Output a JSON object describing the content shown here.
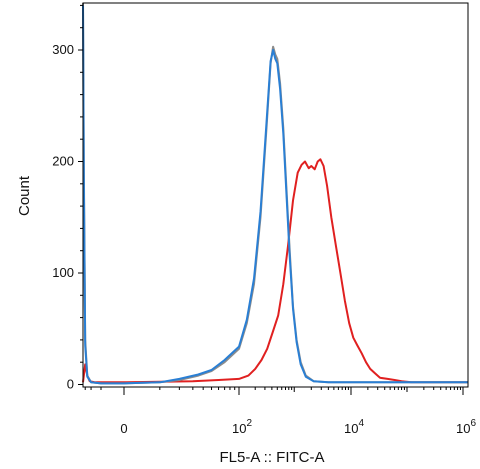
{
  "chart_data": {
    "type": "line",
    "title": "",
    "xlabel": "FL5-A :: FITC-A",
    "ylabel": "Count",
    "x_scale": "biexponential",
    "xlim": [
      -3500,
      1400000
    ],
    "ylim": [
      0,
      345
    ],
    "y_ticks": [
      0,
      100,
      200,
      300
    ],
    "x_ticks": [
      {
        "value": 0,
        "base": "0",
        "exp": ""
      },
      {
        "value": 100,
        "base": "10",
        "exp": "2"
      },
      {
        "value": 10000,
        "base": "10",
        "exp": "4"
      },
      {
        "value": 1000000,
        "base": "10",
        "exp": "6"
      }
    ],
    "grid": false,
    "legend": "none",
    "series": [
      {
        "color": "#e02020",
        "points": [
          [
            -3500,
            2
          ],
          [
            -3000,
            18
          ],
          [
            -2600,
            8
          ],
          [
            -2200,
            3
          ],
          [
            -1500,
            2
          ],
          [
            -500,
            2
          ],
          [
            0,
            2
          ],
          [
            30,
            3
          ],
          [
            60,
            4
          ],
          [
            100,
            5
          ],
          [
            150,
            8
          ],
          [
            200,
            14
          ],
          [
            260,
            22
          ],
          [
            330,
            32
          ],
          [
            420,
            48
          ],
          [
            520,
            62
          ],
          [
            640,
            90
          ],
          [
            780,
            125
          ],
          [
            950,
            165
          ],
          [
            1150,
            190
          ],
          [
            1350,
            197
          ],
          [
            1550,
            200
          ],
          [
            1800,
            194
          ],
          [
            2000,
            196
          ],
          [
            2300,
            193
          ],
          [
            2600,
            200
          ],
          [
            2900,
            202
          ],
          [
            3300,
            196
          ],
          [
            3800,
            178
          ],
          [
            4500,
            150
          ],
          [
            5400,
            125
          ],
          [
            6500,
            100
          ],
          [
            7800,
            75
          ],
          [
            9300,
            55
          ],
          [
            11000,
            42
          ],
          [
            13000,
            35
          ],
          [
            15500,
            28
          ],
          [
            18500,
            20
          ],
          [
            22000,
            14
          ],
          [
            27000,
            10
          ],
          [
            33000,
            6
          ],
          [
            45000,
            5
          ],
          [
            60000,
            4
          ],
          [
            80000,
            3
          ],
          [
            120000,
            2
          ],
          [
            300000,
            2
          ],
          [
            1400000,
            2
          ]
        ]
      },
      {
        "color": "#8c8c8c",
        "points": [
          [
            -3500,
            345
          ],
          [
            -3300,
            200
          ],
          [
            -3000,
            40
          ],
          [
            -2600,
            8
          ],
          [
            -2000,
            2
          ],
          [
            -1000,
            1
          ],
          [
            0,
            1
          ],
          [
            10,
            2
          ],
          [
            20,
            4
          ],
          [
            35,
            8
          ],
          [
            50,
            12
          ],
          [
            70,
            20
          ],
          [
            100,
            32
          ],
          [
            140,
            55
          ],
          [
            190,
            90
          ],
          [
            250,
            150
          ],
          [
            320,
            230
          ],
          [
            380,
            288
          ],
          [
            420,
            303
          ],
          [
            460,
            296
          ],
          [
            500,
            292
          ],
          [
            560,
            270
          ],
          [
            640,
            230
          ],
          [
            730,
            175
          ],
          [
            830,
            120
          ],
          [
            950,
            70
          ],
          [
            1100,
            40
          ],
          [
            1300,
            20
          ],
          [
            1600,
            8
          ],
          [
            2200,
            3
          ],
          [
            4000,
            2
          ],
          [
            10000,
            2
          ],
          [
            1400000,
            2
          ]
        ]
      },
      {
        "color": "#2a7fd4",
        "points": [
          [
            -3500,
            340
          ],
          [
            -3300,
            190
          ],
          [
            -3000,
            35
          ],
          [
            -2600,
            7
          ],
          [
            -2000,
            2
          ],
          [
            -1000,
            1
          ],
          [
            0,
            1
          ],
          [
            10,
            2
          ],
          [
            20,
            5
          ],
          [
            35,
            9
          ],
          [
            50,
            13
          ],
          [
            70,
            22
          ],
          [
            100,
            34
          ],
          [
            140,
            58
          ],
          [
            190,
            95
          ],
          [
            250,
            155
          ],
          [
            320,
            235
          ],
          [
            380,
            290
          ],
          [
            420,
            300
          ],
          [
            460,
            292
          ],
          [
            500,
            288
          ],
          [
            560,
            265
          ],
          [
            640,
            225
          ],
          [
            730,
            170
          ],
          [
            830,
            115
          ],
          [
            950,
            68
          ],
          [
            1100,
            38
          ],
          [
            1300,
            18
          ],
          [
            1600,
            7
          ],
          [
            2200,
            3
          ],
          [
            4000,
            2
          ],
          [
            10000,
            2
          ],
          [
            1400000,
            2
          ]
        ]
      }
    ]
  }
}
